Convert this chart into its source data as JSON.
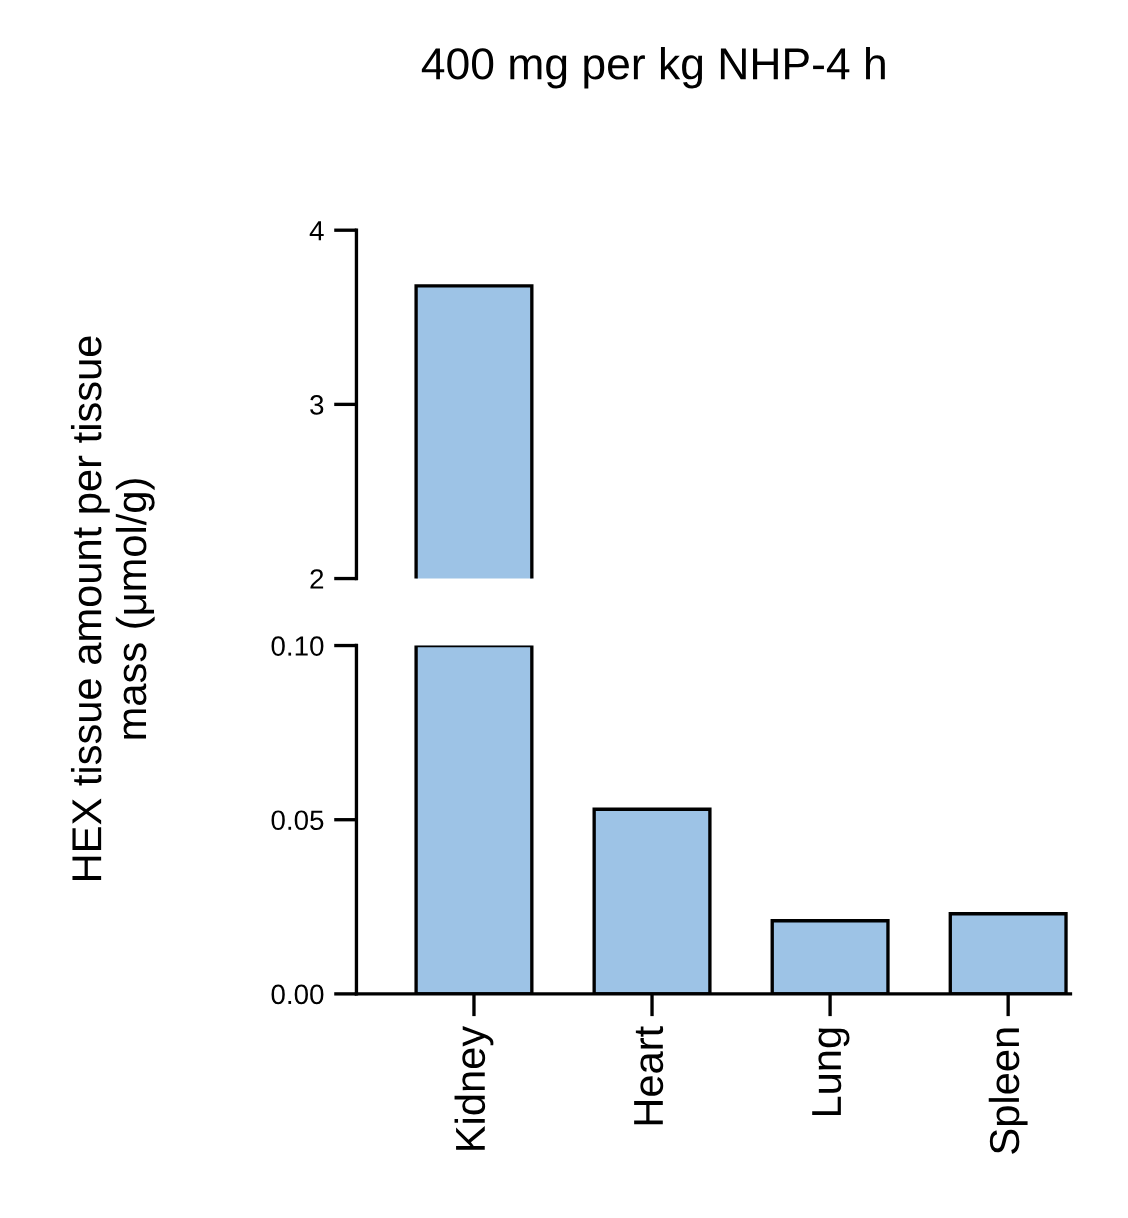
{
  "chart_data": [
    {
      "type": "bar",
      "title": "400 mg per kg NHP-4 h",
      "ylabel": "HEX tissue amount per tissue\nmass (μmol/g)",
      "color": "#9dc3e6",
      "values": [
        3.68,
        null,
        null,
        null
      ],
      "ylim": [
        2,
        4
      ],
      "yticks": [
        2,
        3,
        4
      ],
      "tick_labels": "y",
      "grid": false
    },
    {
      "type": "bar",
      "categories": [
        "Kidney",
        "Heart",
        "Lung",
        "Spleen"
      ],
      "color": "#9dc3e6",
      "values": [
        0.1,
        0.053,
        0.021,
        0.023
      ],
      "ylim": [
        0,
        0.1
      ],
      "yticks": [
        {
          "value": 0,
          "label": "0.00"
        },
        0.05,
        {
          "value": 0.1,
          "label": "0.10"
        }
      ],
      "grid": false
    }
  ]
}
